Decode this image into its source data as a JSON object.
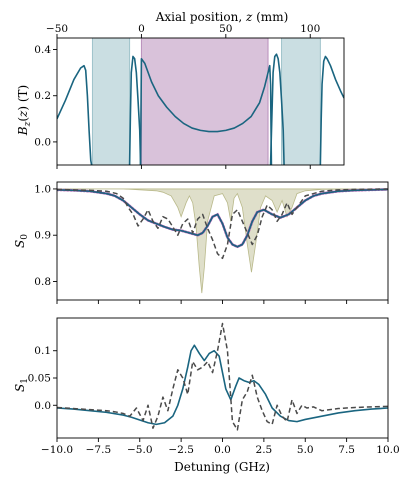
{
  "chart_data": [
    {
      "type": "line",
      "panel": "field-profile",
      "xlabel_top_prefix": "Axial position, ",
      "xlabel_top_var": "z",
      "xlabel_top_unit": " (mm)",
      "ylabel": "B_z(z) (T)",
      "xlim": [
        -50,
        120
      ],
      "ylim": [
        -0.1,
        0.45
      ],
      "xticks": [
        -50,
        0,
        50,
        100
      ],
      "yticks": [
        0.0,
        0.2,
        0.4
      ],
      "xtick_labels": [
        "−50",
        "0",
        "50",
        "100"
      ],
      "ytick_labels": [
        "0.0",
        "0.2",
        "0.4"
      ],
      "shaded_regions": [
        {
          "x": [
            -29,
            -7
          ],
          "color": "#9fc3cb"
        },
        {
          "x": [
            0,
            75
          ],
          "color": "#b98fbb"
        },
        {
          "x": [
            83,
            106
          ],
          "color": "#9fc3cb"
        }
      ],
      "series": [
        {
          "color": "#1a6580",
          "x": [
            -50,
            -45,
            -40,
            -36,
            -34,
            -33,
            -32,
            -31,
            -30,
            -29.5
          ],
          "y": [
            0.1,
            0.18,
            0.27,
            0.32,
            0.33,
            0.31,
            0.2,
            0.05,
            -0.08,
            -0.1
          ]
        },
        {
          "color": "#1a6580",
          "x": [
            -7,
            -6.5,
            -6,
            -5,
            -4,
            -3,
            -2,
            -1,
            -0.5
          ],
          "y": [
            -0.1,
            0.12,
            0.3,
            0.37,
            0.36,
            0.3,
            0.18,
            0.05,
            -0.1
          ]
        },
        {
          "color": "#1a6580",
          "x": [
            -0.5,
            0,
            1,
            2,
            4,
            6,
            10,
            15,
            20,
            25,
            30,
            35,
            40,
            45,
            50,
            55,
            60,
            65,
            70,
            73,
            75,
            76,
            76.5,
            77
          ],
          "y": [
            -0.1,
            0.36,
            0.35,
            0.34,
            0.3,
            0.26,
            0.2,
            0.15,
            0.11,
            0.08,
            0.06,
            0.05,
            0.045,
            0.045,
            0.05,
            0.06,
            0.08,
            0.11,
            0.17,
            0.24,
            0.3,
            0.33,
            0.25,
            -0.1
          ]
        },
        {
          "color": "#1a6580",
          "x": [
            76.5,
            78,
            79,
            80,
            81,
            82,
            83,
            84,
            84.5
          ],
          "y": [
            -0.1,
            0.3,
            0.37,
            0.38,
            0.36,
            0.3,
            0.18,
            0.05,
            -0.1
          ]
        },
        {
          "color": "#1a6580",
          "x": [
            106,
            106.5,
            107,
            108,
            109,
            110,
            112,
            115,
            118,
            120
          ],
          "y": [
            -0.1,
            0.1,
            0.25,
            0.35,
            0.37,
            0.36,
            0.33,
            0.27,
            0.22,
            0.19
          ]
        }
      ]
    },
    {
      "type": "line",
      "panel": "S0",
      "ylabel": "S_0",
      "xlim": [
        -10,
        10
      ],
      "ylim": [
        0.76,
        1.015
      ],
      "xticks": [
        -10,
        -7.5,
        -5,
        -2.5,
        0,
        2.5,
        5,
        7.5,
        10
      ],
      "yticks": [
        0.8,
        0.9,
        1.0
      ],
      "ytick_labels": [
        "0.8",
        "0.9",
        "1.0"
      ],
      "shaded_regions": [
        {
          "kind": "transmission",
          "color": "#b9b98a",
          "x": [
            -10,
            -6,
            -5.5,
            -5,
            -4,
            -3.6,
            -3.1,
            -2.7,
            -2.5,
            -2.2,
            -2.0,
            -1.8,
            -1.6,
            -1.4,
            -1.25,
            -1.1,
            -0.9,
            -0.5,
            0.0,
            0.3,
            0.5,
            0.7,
            0.9,
            1.2,
            1.5,
            1.75,
            2.0,
            2.3,
            2.6,
            3.0,
            3.3,
            3.6,
            3.9,
            4.2,
            4.5,
            5.0,
            6.0,
            10
          ],
          "y": [
            1.0,
            1.0,
            0.999,
            0.998,
            0.996,
            0.993,
            0.985,
            0.96,
            0.94,
            0.97,
            0.985,
            0.97,
            0.92,
            0.83,
            0.775,
            0.83,
            0.93,
            0.985,
            0.99,
            0.97,
            0.93,
            0.98,
            0.99,
            0.96,
            0.88,
            0.82,
            0.88,
            0.96,
            0.985,
            0.975,
            0.95,
            0.975,
            0.94,
            0.96,
            0.99,
            0.996,
            0.999,
            1.0
          ]
        }
      ],
      "series": [
        {
          "style": "data",
          "color": "#b05ab0",
          "x": [
            -10,
            -9,
            -8,
            -7,
            -6.5,
            -6,
            -5.5,
            -5,
            -4.5,
            -4,
            -3.5,
            -3,
            -2.5,
            -2,
            -1.5,
            -1.2,
            -0.9,
            -0.6,
            -0.3,
            0,
            0.3,
            0.6,
            0.9,
            1.2,
            1.5,
            1.8,
            2.1,
            2.5,
            3,
            3.5,
            4,
            4.5,
            5,
            5.5,
            6,
            7,
            8,
            9,
            10
          ],
          "y": [
            0.998,
            0.997,
            0.995,
            0.99,
            0.985,
            0.975,
            0.96,
            0.945,
            0.932,
            0.925,
            0.918,
            0.912,
            0.91,
            0.905,
            0.9,
            0.905,
            0.92,
            0.94,
            0.945,
            0.925,
            0.895,
            0.88,
            0.875,
            0.88,
            0.9,
            0.93,
            0.95,
            0.955,
            0.945,
            0.938,
            0.945,
            0.96,
            0.975,
            0.985,
            0.99,
            0.995,
            0.997,
            0.998,
            0.999
          ]
        },
        {
          "style": "solid",
          "color": "#1a6580",
          "x": [
            -10,
            -9,
            -8,
            -7,
            -6.5,
            -6,
            -5.5,
            -5,
            -4.5,
            -4,
            -3.5,
            -3,
            -2.5,
            -2,
            -1.5,
            -1.2,
            -0.9,
            -0.6,
            -0.3,
            0,
            0.3,
            0.6,
            0.9,
            1.2,
            1.5,
            1.8,
            2.1,
            2.5,
            3,
            3.5,
            4,
            4.5,
            5,
            5.5,
            6,
            7,
            8,
            9,
            10
          ],
          "y": [
            0.998,
            0.997,
            0.995,
            0.99,
            0.985,
            0.975,
            0.96,
            0.945,
            0.932,
            0.925,
            0.918,
            0.912,
            0.91,
            0.905,
            0.9,
            0.905,
            0.92,
            0.94,
            0.945,
            0.925,
            0.895,
            0.88,
            0.875,
            0.88,
            0.9,
            0.93,
            0.95,
            0.955,
            0.945,
            0.938,
            0.945,
            0.96,
            0.975,
            0.985,
            0.99,
            0.995,
            0.997,
            0.998,
            0.999
          ]
        },
        {
          "style": "dashed",
          "color": "#4a4a4a",
          "x": [
            -10,
            -8,
            -7,
            -6.4,
            -6.0,
            -5.7,
            -5.4,
            -5.1,
            -4.8,
            -4.5,
            -4.2,
            -3.9,
            -3.6,
            -3.3,
            -3.0,
            -2.7,
            -2.4,
            -2.1,
            -1.8,
            -1.5,
            -1.2,
            -0.9,
            -0.6,
            -0.3,
            0,
            0.3,
            0.6,
            0.9,
            1.2,
            1.5,
            1.8,
            2.1,
            2.4,
            2.7,
            3.0,
            3.3,
            3.6,
            3.9,
            4.2,
            4.5,
            5,
            6,
            7,
            8,
            10
          ],
          "y": [
            0.999,
            0.997,
            0.995,
            0.99,
            0.98,
            0.96,
            0.945,
            0.92,
            0.935,
            0.955,
            0.93,
            0.915,
            0.94,
            0.935,
            0.918,
            0.9,
            0.925,
            0.935,
            0.905,
            0.935,
            0.945,
            0.915,
            0.89,
            0.86,
            0.85,
            0.88,
            0.945,
            0.955,
            0.93,
            0.905,
            0.88,
            0.9,
            0.94,
            0.965,
            0.955,
            0.93,
            0.945,
            0.97,
            0.945,
            0.96,
            0.985,
            0.995,
            0.998,
            0.999,
            1.0
          ]
        }
      ]
    },
    {
      "type": "line",
      "panel": "S1",
      "ylabel": "S_1",
      "xlabel": "Detuning (GHz)",
      "xlim": [
        -10,
        10
      ],
      "ylim": [
        -0.06,
        0.16
      ],
      "xticks": [
        -10,
        -7.5,
        -5,
        -2.5,
        0,
        2.5,
        5,
        7.5,
        10
      ],
      "xtick_labels": [
        "−10.0",
        "−7.5",
        "−5.0",
        "−2.5",
        "0.0",
        "2.5",
        "5.0",
        "7.5",
        "10.0"
      ],
      "yticks": [
        0.0,
        0.05,
        0.1
      ],
      "ytick_labels": [
        "0.0",
        "0.05",
        "0.1"
      ],
      "series": [
        {
          "style": "solid",
          "color": "#1a6580",
          "x": [
            -10,
            -9,
            -8,
            -7,
            -6,
            -5.5,
            -5,
            -4.5,
            -4,
            -3.5,
            -3,
            -2.7,
            -2.4,
            -2.1,
            -1.9,
            -1.7,
            -1.4,
            -1.1,
            -0.8,
            -0.5,
            -0.2,
            0,
            0.2,
            0.5,
            0.8,
            1.0,
            1.3,
            1.6,
            1.9,
            2.2,
            2.6,
            3.0,
            3.5,
            4,
            4.5,
            5,
            6,
            7,
            8,
            9,
            10
          ],
          "y": [
            -0.005,
            -0.007,
            -0.01,
            -0.013,
            -0.018,
            -0.022,
            -0.027,
            -0.032,
            -0.035,
            -0.032,
            -0.02,
            0.0,
            0.03,
            0.07,
            0.1,
            0.11,
            0.095,
            0.082,
            0.095,
            0.1,
            0.09,
            0.06,
            0.03,
            0.01,
            0.035,
            0.05,
            0.045,
            0.042,
            0.045,
            0.038,
            0.02,
            -0.005,
            -0.02,
            -0.028,
            -0.03,
            -0.026,
            -0.02,
            -0.014,
            -0.01,
            -0.007,
            -0.005
          ]
        },
        {
          "style": "dashed",
          "color": "#4a4a4a",
          "x": [
            -10,
            -8,
            -7,
            -6.5,
            -6,
            -5.6,
            -5.2,
            -4.8,
            -4.5,
            -4.2,
            -3.9,
            -3.6,
            -3.3,
            -3.0,
            -2.7,
            -2.4,
            -2.1,
            -1.8,
            -1.5,
            -1.2,
            -0.9,
            -0.6,
            -0.3,
            0,
            0.3,
            0.6,
            0.9,
            1.2,
            1.5,
            1.8,
            2.1,
            2.4,
            2.7,
            3.0,
            3.3,
            3.6,
            3.9,
            4.2,
            4.5,
            4.8,
            5.1,
            5.5,
            6,
            7,
            8,
            10
          ],
          "y": [
            -0.004,
            -0.008,
            -0.01,
            -0.012,
            -0.015,
            -0.02,
            -0.005,
            -0.028,
            0.0,
            -0.042,
            -0.02,
            0.015,
            -0.01,
            0.03,
            0.065,
            0.05,
            0.02,
            0.08,
            0.065,
            0.07,
            0.08,
            0.06,
            0.1,
            0.15,
            0.1,
            -0.03,
            -0.045,
            0.01,
            0.025,
            0.055,
            0.015,
            -0.01,
            -0.03,
            -0.035,
            0.0,
            -0.02,
            -0.03,
            0.01,
            -0.015,
            0.0,
            -0.005,
            -0.003,
            -0.01,
            -0.006,
            -0.004,
            -0.002
          ]
        }
      ]
    }
  ]
}
